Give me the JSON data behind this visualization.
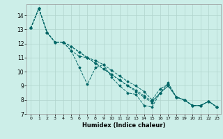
{
  "xlabel": "Humidex (Indice chaleur)",
  "ylabel": "",
  "background_color": "#cceee8",
  "grid_color": "#b0d4cc",
  "line_color": "#006666",
  "xlim": [
    -0.5,
    23.5
  ],
  "ylim": [
    7,
    14.8
  ],
  "yticks": [
    7,
    8,
    9,
    10,
    11,
    12,
    13,
    14
  ],
  "xticks": [
    0,
    1,
    2,
    3,
    4,
    5,
    6,
    7,
    8,
    9,
    10,
    11,
    12,
    13,
    14,
    15,
    16,
    17,
    18,
    19,
    20,
    21,
    22,
    23
  ],
  "series": [
    [
      13.1,
      14.5,
      12.8,
      12.1,
      12.1,
      11.5,
      10.3,
      9.1,
      10.3,
      10.5,
      9.6,
      9.0,
      8.5,
      8.4,
      7.6,
      7.5,
      8.5,
      9.0,
      8.2,
      8.0,
      7.6,
      7.6,
      7.9,
      7.5
    ],
    [
      13.1,
      14.5,
      12.8,
      12.1,
      12.1,
      11.5,
      11.1,
      11.0,
      10.8,
      10.5,
      10.1,
      9.7,
      9.3,
      9.0,
      8.6,
      8.0,
      8.8,
      9.1,
      8.2,
      8.0,
      7.6,
      7.6,
      7.9,
      7.5
    ],
    [
      13.1,
      14.5,
      12.8,
      12.1,
      12.1,
      11.8,
      11.4,
      11.0,
      10.6,
      10.2,
      9.8,
      9.4,
      9.0,
      8.7,
      8.3,
      7.9,
      8.5,
      9.0,
      8.2,
      8.0,
      7.6,
      7.6,
      7.9,
      7.5
    ],
    [
      13.1,
      14.5,
      12.8,
      12.1,
      12.1,
      11.8,
      11.4,
      11.0,
      10.6,
      10.2,
      9.8,
      9.4,
      9.0,
      8.6,
      8.2,
      7.8,
      8.5,
      9.2,
      8.2,
      8.0,
      7.6,
      7.6,
      7.9,
      7.5
    ]
  ]
}
